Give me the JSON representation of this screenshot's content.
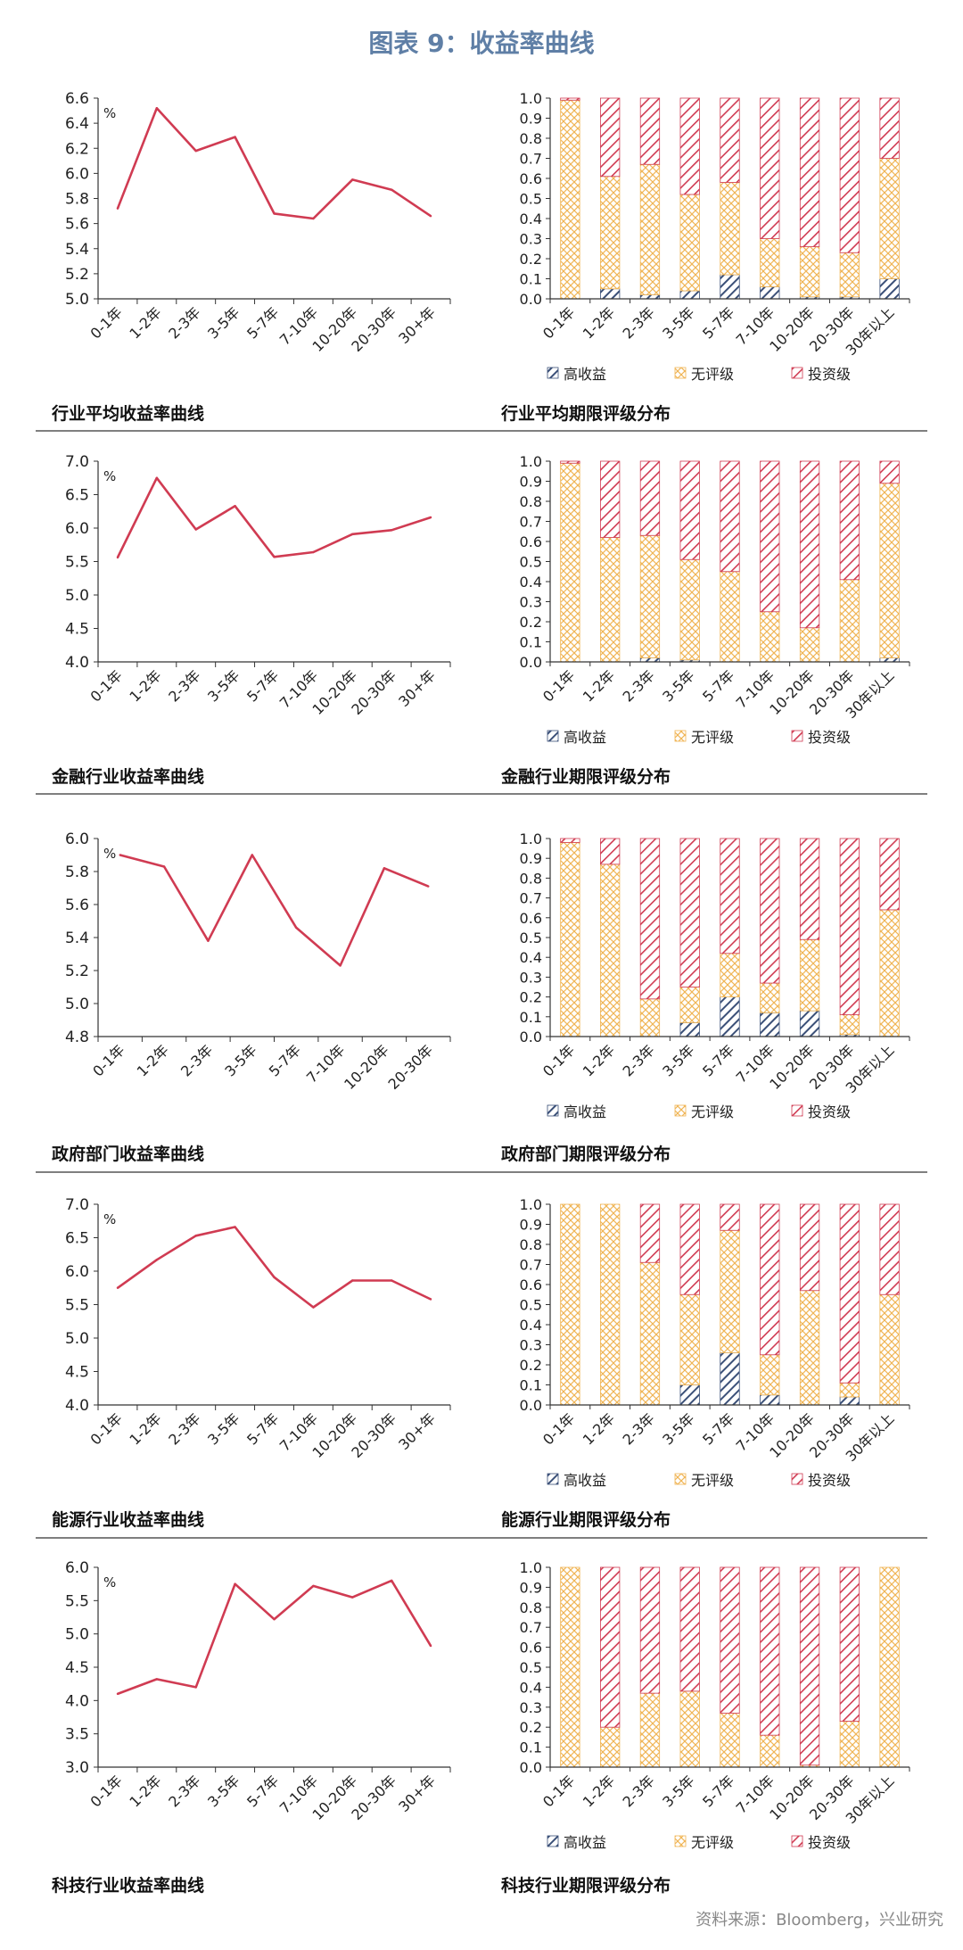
{
  "page": {
    "title": "图表 9：收益率曲线",
    "source": "资料来源：Bloomberg，兴业研究"
  },
  "colors": {
    "title": "#5f7fa6",
    "line": "#d03b52",
    "high": "#3b5078",
    "none": "#f0b555",
    "inv": "#d03b52",
    "axis": "#333333",
    "rule": "#555555"
  },
  "legend": [
    "高收益",
    "无评级",
    "投资级"
  ],
  "chart_data": [
    {
      "type": "line",
      "caption": "行业平均收益率曲线",
      "unit": "%",
      "categories": [
        "0-1年",
        "1-2年",
        "2-3年",
        "3-5年",
        "5-7年",
        "7-10年",
        "10-20年",
        "20-30年",
        "30+年"
      ],
      "values": [
        5.72,
        6.52,
        6.18,
        6.29,
        5.68,
        5.64,
        5.95,
        5.87,
        5.66
      ],
      "ylim": [
        5.0,
        6.6
      ],
      "yticks": [
        "5.0",
        "5.2",
        "5.4",
        "5.6",
        "5.8",
        "6.0",
        "6.2",
        "6.4",
        "6.6"
      ]
    },
    {
      "type": "bar",
      "stacked": true,
      "caption": "行业平均期限评级分布",
      "categories": [
        "0-1年",
        "1-2年",
        "2-3年",
        "3-5年",
        "5-7年",
        "7-10年",
        "10-20年",
        "20-30年",
        "30年以上"
      ],
      "series": [
        {
          "name": "高收益",
          "values": [
            0.0,
            0.05,
            0.02,
            0.04,
            0.12,
            0.06,
            0.01,
            0.01,
            0.1
          ]
        },
        {
          "name": "无评级",
          "values": [
            0.99,
            0.56,
            0.65,
            0.48,
            0.46,
            0.24,
            0.25,
            0.22,
            0.6
          ]
        },
        {
          "name": "投资级",
          "values": [
            0.01,
            0.39,
            0.33,
            0.48,
            0.42,
            0.7,
            0.74,
            0.77,
            0.3
          ]
        }
      ],
      "ylim": [
        0,
        1
      ],
      "yticks": [
        "0.0",
        "0.1",
        "0.2",
        "0.3",
        "0.4",
        "0.5",
        "0.6",
        "0.7",
        "0.8",
        "0.9",
        "1.0"
      ]
    },
    {
      "type": "line",
      "caption": "金融行业收益率曲线",
      "unit": "%",
      "categories": [
        "0-1年",
        "1-2年",
        "2-3年",
        "3-5年",
        "5-7年",
        "7-10年",
        "10-20年",
        "20-30年",
        "30+年"
      ],
      "values": [
        5.56,
        6.75,
        5.98,
        6.33,
        5.57,
        5.64,
        5.91,
        5.97,
        6.16
      ],
      "ylim": [
        4.0,
        7.0
      ],
      "yticks": [
        "4.0",
        "4.5",
        "5.0",
        "5.5",
        "6.0",
        "6.5",
        "7.0"
      ]
    },
    {
      "type": "bar",
      "stacked": true,
      "caption": "金融行业期限评级分布",
      "categories": [
        "0-1年",
        "1-2年",
        "2-3年",
        "3-5年",
        "5-7年",
        "7-10年",
        "10-20年",
        "20-30年",
        "30年以上"
      ],
      "series": [
        {
          "name": "高收益",
          "values": [
            0.0,
            0.0,
            0.02,
            0.01,
            0.0,
            0.0,
            0.0,
            0.0,
            0.02
          ]
        },
        {
          "name": "无评级",
          "values": [
            0.99,
            0.62,
            0.61,
            0.5,
            0.45,
            0.25,
            0.17,
            0.41,
            0.87
          ]
        },
        {
          "name": "投资级",
          "values": [
            0.01,
            0.38,
            0.37,
            0.49,
            0.55,
            0.75,
            0.83,
            0.59,
            0.11
          ]
        }
      ],
      "ylim": [
        0,
        1
      ],
      "yticks": [
        "0.0",
        "0.1",
        "0.2",
        "0.3",
        "0.4",
        "0.5",
        "0.6",
        "0.7",
        "0.8",
        "0.9",
        "1.0"
      ]
    },
    {
      "type": "line",
      "caption": "政府部门收益率曲线",
      "unit": "%",
      "categories": [
        "0-1年",
        "1-2年",
        "2-3年",
        "3-5年",
        "5-7年",
        "7-10年",
        "10-20年",
        "20-30年"
      ],
      "values": [
        5.9,
        5.83,
        5.38,
        5.9,
        5.46,
        5.23,
        5.82,
        5.71
      ],
      "ylim": [
        4.8,
        6.0
      ],
      "yticks": [
        "4.8",
        "5.0",
        "5.2",
        "5.4",
        "5.6",
        "5.8",
        "6.0"
      ]
    },
    {
      "type": "bar",
      "stacked": true,
      "caption": "政府部门期限评级分布",
      "categories": [
        "0-1年",
        "1-2年",
        "2-3年",
        "3-5年",
        "5-7年",
        "7-10年",
        "10-20年",
        "20-30年",
        "30年以上"
      ],
      "series": [
        {
          "name": "高收益",
          "values": [
            0.0,
            0.0,
            0.0,
            0.07,
            0.2,
            0.12,
            0.13,
            0.01,
            0.0
          ]
        },
        {
          "name": "无评级",
          "values": [
            0.98,
            0.87,
            0.19,
            0.18,
            0.22,
            0.15,
            0.36,
            0.1,
            0.64
          ]
        },
        {
          "name": "投资级",
          "values": [
            0.02,
            0.13,
            0.81,
            0.75,
            0.58,
            0.73,
            0.51,
            0.89,
            0.36
          ]
        }
      ],
      "ylim": [
        0,
        1
      ],
      "yticks": [
        "0.0",
        "0.1",
        "0.2",
        "0.3",
        "0.4",
        "0.5",
        "0.6",
        "0.7",
        "0.8",
        "0.9",
        "1.0"
      ]
    },
    {
      "type": "line",
      "caption": "能源行业收益率曲线",
      "unit": "%",
      "categories": [
        "0-1年",
        "1-2年",
        "2-3年",
        "3-5年",
        "5-7年",
        "7-10年",
        "10-20年",
        "20-30年",
        "30+年"
      ],
      "values": [
        5.75,
        6.17,
        6.53,
        6.66,
        5.91,
        5.46,
        5.86,
        5.86,
        5.58
      ],
      "ylim": [
        4.0,
        7.0
      ],
      "yticks": [
        "4.0",
        "4.5",
        "5.0",
        "5.5",
        "6.0",
        "6.5",
        "7.0"
      ]
    },
    {
      "type": "bar",
      "stacked": true,
      "caption": "能源行业期限评级分布",
      "categories": [
        "0-1年",
        "1-2年",
        "2-3年",
        "3-5年",
        "5-7年",
        "7-10年",
        "10-20年",
        "20-30年",
        "30年以上"
      ],
      "series": [
        {
          "name": "高收益",
          "values": [
            0.0,
            0.0,
            0.0,
            0.1,
            0.26,
            0.05,
            0.0,
            0.04,
            0.0
          ]
        },
        {
          "name": "无评级",
          "values": [
            1.0,
            1.0,
            0.71,
            0.45,
            0.61,
            0.2,
            0.57,
            0.07,
            0.55
          ]
        },
        {
          "name": "投资级",
          "values": [
            0.0,
            0.0,
            0.29,
            0.45,
            0.13,
            0.75,
            0.43,
            0.89,
            0.45
          ]
        }
      ],
      "ylim": [
        0,
        1
      ],
      "yticks": [
        "0.0",
        "0.1",
        "0.2",
        "0.3",
        "0.4",
        "0.5",
        "0.6",
        "0.7",
        "0.8",
        "0.9",
        "1.0"
      ]
    },
    {
      "type": "line",
      "caption": "科技行业收益率曲线",
      "unit": "%",
      "categories": [
        "0-1年",
        "1-2年",
        "2-3年",
        "3-5年",
        "5-7年",
        "7-10年",
        "10-20年",
        "20-30年",
        "30+年"
      ],
      "values": [
        4.1,
        4.32,
        4.2,
        5.75,
        5.22,
        5.72,
        5.55,
        5.8,
        4.82
      ],
      "ylim": [
        3.0,
        6.0
      ],
      "yticks": [
        "3.0",
        "3.5",
        "4.0",
        "4.5",
        "5.0",
        "5.5",
        "6.0"
      ]
    },
    {
      "type": "bar",
      "stacked": true,
      "caption": "科技行业期限评级分布",
      "categories": [
        "0-1年",
        "1-2年",
        "2-3年",
        "3-5年",
        "5-7年",
        "7-10年",
        "10-20年",
        "20-30年",
        "30年以上"
      ],
      "series": [
        {
          "name": "高收益",
          "values": [
            0.0,
            0.0,
            0.0,
            0.0,
            0.0,
            0.0,
            0.0,
            0.0,
            0.0
          ]
        },
        {
          "name": "无评级",
          "values": [
            1.0,
            0.2,
            0.37,
            0.38,
            0.27,
            0.16,
            0.01,
            0.23,
            1.0
          ]
        },
        {
          "name": "投资级",
          "values": [
            0.0,
            0.8,
            0.63,
            0.62,
            0.73,
            0.84,
            0.99,
            0.77,
            0.0
          ]
        }
      ],
      "ylim": [
        0,
        1
      ],
      "yticks": [
        "0.0",
        "0.1",
        "0.2",
        "0.3",
        "0.4",
        "0.5",
        "0.6",
        "0.7",
        "0.8",
        "0.9",
        "1.0"
      ]
    }
  ]
}
